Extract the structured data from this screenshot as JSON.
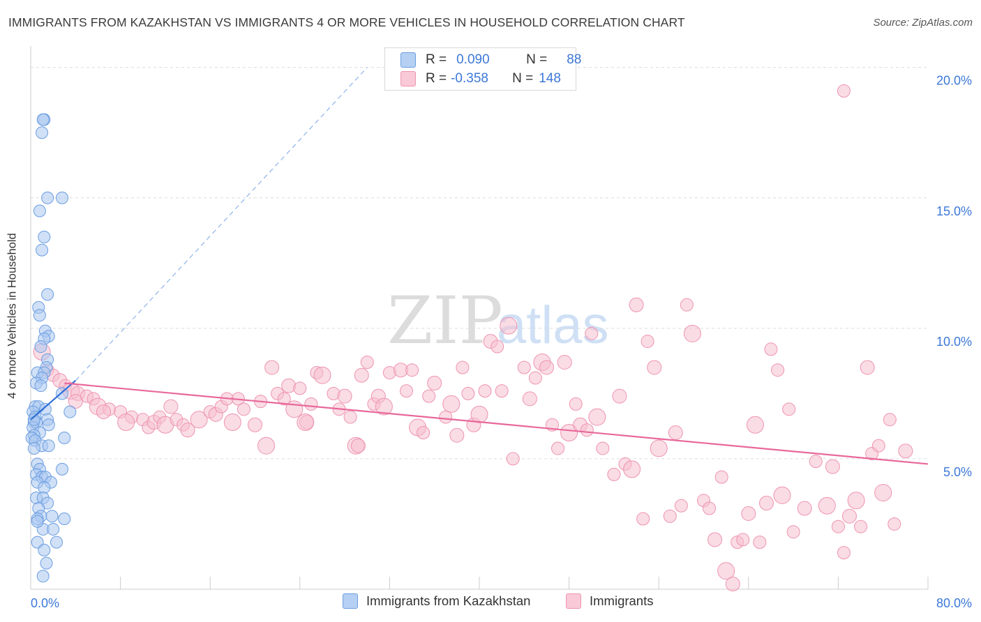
{
  "title": "IMMIGRANTS FROM KAZAKHSTAN VS IMMIGRANTS 4 OR MORE VEHICLES IN HOUSEHOLD CORRELATION CHART",
  "source": "Source: ZipAtlas.com",
  "watermark": "ZIPatlas",
  "colors": {
    "blue_fill": "#a9c7f0",
    "blue_stroke": "#6a9de0",
    "blue_line": "#2f6fd6",
    "pink_fill": "#f6bfd0",
    "pink_stroke": "#ee93b0",
    "pink_line": "#e8689a",
    "tick_label": "#3c78d8",
    "grid": "#dcdcdc"
  },
  "stats_legend": {
    "rows": [
      {
        "r_label": "R =",
        "r_value": "0.090",
        "n_label": "N =",
        "n_value": "88",
        "series": "blue"
      },
      {
        "r_label": "R =",
        "r_value": "-0.358",
        "n_label": "N =",
        "n_value": "148",
        "series": "pink"
      }
    ]
  },
  "bottom_legend": [
    "Immigrants from Kazakhstan",
    "Immigrants"
  ],
  "chart_data": {
    "type": "scatter",
    "title": "IMMIGRANTS FROM KAZAKHSTAN VS IMMIGRANTS 4 OR MORE VEHICLES IN HOUSEHOLD CORRELATION CHART",
    "xlabel": "",
    "ylabel": "4 or more Vehicles in Household",
    "xlim": [
      0,
      80
    ],
    "ylim": [
      0,
      20.5
    ],
    "x_tick_labels": [
      "0.0%",
      "80.0%"
    ],
    "y_ticks": [
      5,
      10,
      15,
      20
    ],
    "y_tick_labels": [
      "5.0%",
      "10.0%",
      "15.0%",
      "20.0%"
    ],
    "grid": "horizontal dashed",
    "legend_position": "top-center",
    "series": [
      {
        "name": "Immigrants from Kazakhstan",
        "color": "blue",
        "trend": {
          "x": [
            0.0,
            4.0
          ],
          "y": [
            6.5,
            8.0
          ]
        },
        "trend_extended": {
          "x": [
            4.0,
            30.0
          ],
          "y": [
            8.0,
            20.0
          ]
        },
        "points": [
          [
            1.2,
            18.0
          ],
          [
            1.1,
            18.0
          ],
          [
            1.0,
            17.5
          ],
          [
            1.5,
            15.0
          ],
          [
            2.8,
            15.0
          ],
          [
            0.8,
            14.5
          ],
          [
            1.2,
            13.5
          ],
          [
            1.0,
            13.0
          ],
          [
            1.5,
            11.3
          ],
          [
            0.7,
            10.8
          ],
          [
            0.8,
            10.5
          ],
          [
            1.3,
            9.9
          ],
          [
            1.6,
            9.7
          ],
          [
            1.2,
            9.6
          ],
          [
            0.9,
            9.3
          ],
          [
            1.5,
            8.8
          ],
          [
            1.4,
            8.5
          ],
          [
            0.6,
            8.3
          ],
          [
            1.2,
            8.3
          ],
          [
            1.0,
            8.1
          ],
          [
            0.5,
            7.9
          ],
          [
            0.9,
            7.8
          ],
          [
            2.8,
            7.5
          ],
          [
            0.4,
            7.0
          ],
          [
            0.7,
            7.0
          ],
          [
            1.3,
            6.9
          ],
          [
            0.2,
            6.8
          ],
          [
            3.5,
            6.8
          ],
          [
            0.4,
            6.6
          ],
          [
            1.5,
            6.5
          ],
          [
            0.3,
            6.4
          ],
          [
            0.5,
            6.4
          ],
          [
            1.6,
            6.3
          ],
          [
            0.2,
            6.2
          ],
          [
            0.8,
            6.0
          ],
          [
            0.3,
            5.9
          ],
          [
            0.1,
            5.8
          ],
          [
            0.4,
            5.7
          ],
          [
            3.0,
            5.8
          ],
          [
            1.0,
            5.5
          ],
          [
            1.6,
            5.5
          ],
          [
            0.3,
            5.4
          ],
          [
            0.6,
            4.8
          ],
          [
            0.8,
            4.6
          ],
          [
            2.8,
            4.6
          ],
          [
            0.5,
            4.4
          ],
          [
            1.0,
            4.3
          ],
          [
            1.3,
            4.3
          ],
          [
            0.6,
            4.1
          ],
          [
            1.8,
            4.1
          ],
          [
            1.2,
            3.9
          ],
          [
            0.5,
            3.5
          ],
          [
            1.1,
            3.5
          ],
          [
            1.5,
            3.3
          ],
          [
            0.7,
            3.1
          ],
          [
            0.9,
            2.8
          ],
          [
            1.9,
            2.8
          ],
          [
            0.6,
            2.7
          ],
          [
            3.0,
            2.7
          ],
          [
            1.1,
            2.3
          ],
          [
            2.0,
            2.3
          ],
          [
            0.6,
            1.8
          ],
          [
            2.3,
            1.8
          ],
          [
            1.2,
            1.5
          ],
          [
            1.4,
            1.0
          ],
          [
            1.1,
            0.5
          ],
          [
            0.6,
            2.6
          ],
          [
            0.3,
            6.5
          ]
        ]
      },
      {
        "name": "Immigrants",
        "color": "pink",
        "trend": {
          "x": [
            3.0,
            80.0
          ],
          "y": [
            7.9,
            4.8
          ]
        },
        "points": [
          [
            1.0,
            9.1
          ],
          [
            1.5,
            8.4
          ],
          [
            2.0,
            8.2
          ],
          [
            2.6,
            8.0
          ],
          [
            3.1,
            7.8
          ],
          [
            3.6,
            7.6
          ],
          [
            4.2,
            7.5
          ],
          [
            5.0,
            7.4
          ],
          [
            5.6,
            7.3
          ],
          [
            4.0,
            7.2
          ],
          [
            6.0,
            7.0
          ],
          [
            7.0,
            6.9
          ],
          [
            6.5,
            6.8
          ],
          [
            8.0,
            6.8
          ],
          [
            9.0,
            6.6
          ],
          [
            8.5,
            6.4
          ],
          [
            10.0,
            6.5
          ],
          [
            10.5,
            6.2
          ],
          [
            11.0,
            6.4
          ],
          [
            11.5,
            6.6
          ],
          [
            12.0,
            6.3
          ],
          [
            12.5,
            7.0
          ],
          [
            13.0,
            6.5
          ],
          [
            13.6,
            6.3
          ],
          [
            14.0,
            6.1
          ],
          [
            15.0,
            6.5
          ],
          [
            16.0,
            6.8
          ],
          [
            16.5,
            6.7
          ],
          [
            17.0,
            7.0
          ],
          [
            17.5,
            7.3
          ],
          [
            18.0,
            6.4
          ],
          [
            18.5,
            7.3
          ],
          [
            19.0,
            6.9
          ],
          [
            20.0,
            6.3
          ],
          [
            20.5,
            7.2
          ],
          [
            21.0,
            5.5
          ],
          [
            21.5,
            8.5
          ],
          [
            22.0,
            7.5
          ],
          [
            22.6,
            7.3
          ],
          [
            23.0,
            7.8
          ],
          [
            23.5,
            6.9
          ],
          [
            24.0,
            7.7
          ],
          [
            24.6,
            6.4
          ],
          [
            25.0,
            7.1
          ],
          [
            25.5,
            8.3
          ],
          [
            26.0,
            8.2
          ],
          [
            27.0,
            7.5
          ],
          [
            27.5,
            6.9
          ],
          [
            28.0,
            7.4
          ],
          [
            28.5,
            6.6
          ],
          [
            29.0,
            5.5
          ],
          [
            29.5,
            8.2
          ],
          [
            30.0,
            8.7
          ],
          [
            30.6,
            7.1
          ],
          [
            31.0,
            7.4
          ],
          [
            31.5,
            7.0
          ],
          [
            32.0,
            8.3
          ],
          [
            33.0,
            8.4
          ],
          [
            33.5,
            7.6
          ],
          [
            34.0,
            8.4
          ],
          [
            34.5,
            6.2
          ],
          [
            35.0,
            6.0
          ],
          [
            35.5,
            7.4
          ],
          [
            36.0,
            7.9
          ],
          [
            37.0,
            6.6
          ],
          [
            37.5,
            7.1
          ],
          [
            38.0,
            5.9
          ],
          [
            38.5,
            8.5
          ],
          [
            39.0,
            7.5
          ],
          [
            39.5,
            6.3
          ],
          [
            40.0,
            6.7
          ],
          [
            40.5,
            7.6
          ],
          [
            41.0,
            9.5
          ],
          [
            41.6,
            9.3
          ],
          [
            42.0,
            7.6
          ],
          [
            42.6,
            10.1
          ],
          [
            43.0,
            5.0
          ],
          [
            44.0,
            8.5
          ],
          [
            44.5,
            7.3
          ],
          [
            45.0,
            8.1
          ],
          [
            45.6,
            8.7
          ],
          [
            46.0,
            8.5
          ],
          [
            46.5,
            6.3
          ],
          [
            47.0,
            5.4
          ],
          [
            47.6,
            8.7
          ],
          [
            48.0,
            6.0
          ],
          [
            48.6,
            7.1
          ],
          [
            49.0,
            6.3
          ],
          [
            49.6,
            6.1
          ],
          [
            50.0,
            9.8
          ],
          [
            50.5,
            6.6
          ],
          [
            51.0,
            5.4
          ],
          [
            52.0,
            4.4
          ],
          [
            52.5,
            7.4
          ],
          [
            53.0,
            4.8
          ],
          [
            53.6,
            4.6
          ],
          [
            54.0,
            10.9
          ],
          [
            54.6,
            2.7
          ],
          [
            55.0,
            9.5
          ],
          [
            55.6,
            8.5
          ],
          [
            56.0,
            5.4
          ],
          [
            57.0,
            2.8
          ],
          [
            57.5,
            6.0
          ],
          [
            58.0,
            3.2
          ],
          [
            58.5,
            10.9
          ],
          [
            59.0,
            9.8
          ],
          [
            60.0,
            3.4
          ],
          [
            60.5,
            3.1
          ],
          [
            61.0,
            1.9
          ],
          [
            61.6,
            4.3
          ],
          [
            62.0,
            0.7
          ],
          [
            62.6,
            0.2
          ],
          [
            63.0,
            1.8
          ],
          [
            63.5,
            1.9
          ],
          [
            64.0,
            2.9
          ],
          [
            64.6,
            6.3
          ],
          [
            65.0,
            1.8
          ],
          [
            65.6,
            3.3
          ],
          [
            66.0,
            9.2
          ],
          [
            66.6,
            8.4
          ],
          [
            67.0,
            3.6
          ],
          [
            67.6,
            6.9
          ],
          [
            68.0,
            2.2
          ],
          [
            69.0,
            3.1
          ],
          [
            70.0,
            4.9
          ],
          [
            71.0,
            3.2
          ],
          [
            71.5,
            4.7
          ],
          [
            72.0,
            2.4
          ],
          [
            72.5,
            1.4
          ],
          [
            73.0,
            2.8
          ],
          [
            73.6,
            3.4
          ],
          [
            74.0,
            2.4
          ],
          [
            74.6,
            8.5
          ],
          [
            75.0,
            5.2
          ],
          [
            75.6,
            5.5
          ],
          [
            76.0,
            3.7
          ],
          [
            76.6,
            6.5
          ],
          [
            77.0,
            2.5
          ],
          [
            78.0,
            5.3
          ],
          [
            72.5,
            19.1
          ],
          [
            24.5,
            6.4
          ],
          [
            29.2,
            5.5
          ]
        ]
      }
    ]
  }
}
